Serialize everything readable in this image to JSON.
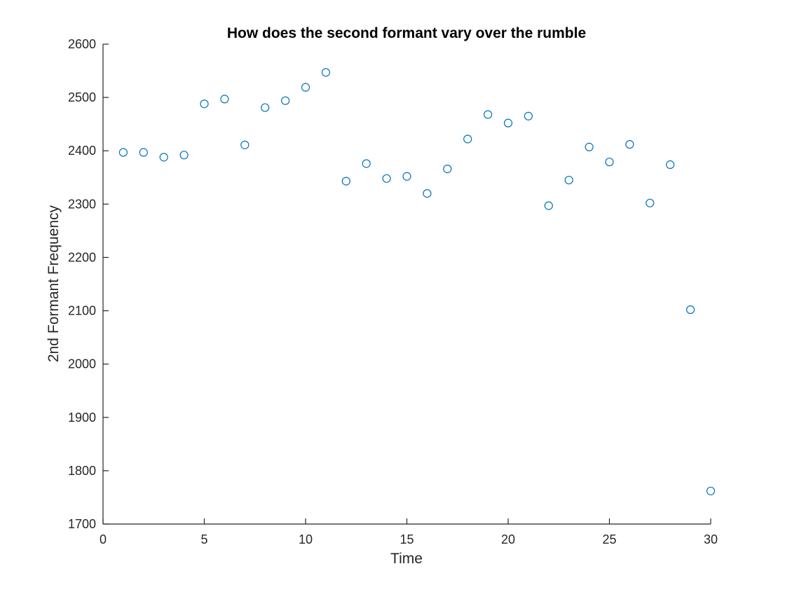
{
  "chart_data": {
    "type": "scatter",
    "title": "How does the second formant vary over the rumble",
    "xlabel": "Time",
    "ylabel": "2nd Formant Frequency",
    "xlim": [
      0,
      30
    ],
    "ylim": [
      1700,
      2600
    ],
    "xticks": [
      0,
      5,
      10,
      15,
      20,
      25,
      30
    ],
    "yticks": [
      1700,
      1800,
      1900,
      2000,
      2100,
      2200,
      2300,
      2400,
      2500,
      2600
    ],
    "grid": false,
    "marker": "open-circle",
    "series": [
      {
        "color": "#0072BD",
        "x": [
          1,
          2,
          3,
          4,
          5,
          6,
          7,
          8,
          9,
          10,
          11,
          12,
          13,
          14,
          15,
          16,
          17,
          18,
          19,
          20,
          21,
          22,
          23,
          24,
          25,
          26,
          27,
          28,
          29,
          30
        ],
        "y": [
          2397,
          2397,
          2388,
          2392,
          2488,
          2497,
          2411,
          2481,
          2494,
          2519,
          2547,
          2343,
          2376,
          2348,
          2352,
          2320,
          2366,
          2422,
          2468,
          2452,
          2465,
          2297,
          2345,
          2407,
          2379,
          2412,
          2302,
          2374,
          2102,
          1762
        ]
      }
    ]
  }
}
